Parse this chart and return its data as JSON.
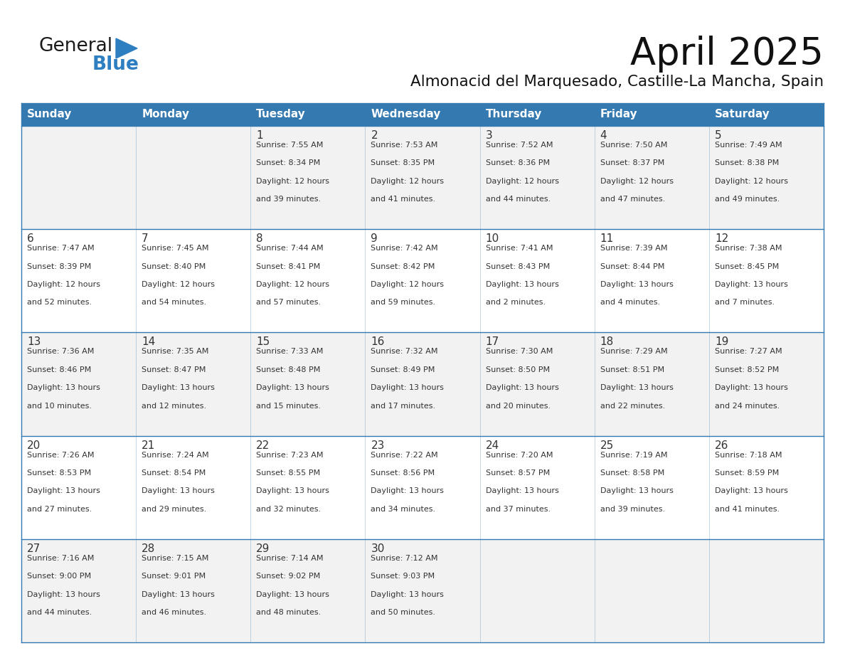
{
  "title": "April 2025",
  "subtitle": "Almonacid del Marquesado, Castille-La Mancha, Spain",
  "days_of_week": [
    "Sunday",
    "Monday",
    "Tuesday",
    "Wednesday",
    "Thursday",
    "Friday",
    "Saturday"
  ],
  "header_bg": "#3579b1",
  "header_text": "#ffffff",
  "row_bg_odd": "#f2f2f2",
  "row_bg_even": "#ffffff",
  "cell_text": "#333333",
  "grid_line": "#3579b1",
  "calendar": [
    [
      {
        "day": "",
        "sunrise": "",
        "sunset": "",
        "daylight": ""
      },
      {
        "day": "",
        "sunrise": "",
        "sunset": "",
        "daylight": ""
      },
      {
        "day": "1",
        "sunrise": "7:55 AM",
        "sunset": "8:34 PM",
        "daylight": "12 hours and 39 minutes."
      },
      {
        "day": "2",
        "sunrise": "7:53 AM",
        "sunset": "8:35 PM",
        "daylight": "12 hours and 41 minutes."
      },
      {
        "day": "3",
        "sunrise": "7:52 AM",
        "sunset": "8:36 PM",
        "daylight": "12 hours and 44 minutes."
      },
      {
        "day": "4",
        "sunrise": "7:50 AM",
        "sunset": "8:37 PM",
        "daylight": "12 hours and 47 minutes."
      },
      {
        "day": "5",
        "sunrise": "7:49 AM",
        "sunset": "8:38 PM",
        "daylight": "12 hours and 49 minutes."
      }
    ],
    [
      {
        "day": "6",
        "sunrise": "7:47 AM",
        "sunset": "8:39 PM",
        "daylight": "12 hours and 52 minutes."
      },
      {
        "day": "7",
        "sunrise": "7:45 AM",
        "sunset": "8:40 PM",
        "daylight": "12 hours and 54 minutes."
      },
      {
        "day": "8",
        "sunrise": "7:44 AM",
        "sunset": "8:41 PM",
        "daylight": "12 hours and 57 minutes."
      },
      {
        "day": "9",
        "sunrise": "7:42 AM",
        "sunset": "8:42 PM",
        "daylight": "12 hours and 59 minutes."
      },
      {
        "day": "10",
        "sunrise": "7:41 AM",
        "sunset": "8:43 PM",
        "daylight": "13 hours and 2 minutes."
      },
      {
        "day": "11",
        "sunrise": "7:39 AM",
        "sunset": "8:44 PM",
        "daylight": "13 hours and 4 minutes."
      },
      {
        "day": "12",
        "sunrise": "7:38 AM",
        "sunset": "8:45 PM",
        "daylight": "13 hours and 7 minutes."
      }
    ],
    [
      {
        "day": "13",
        "sunrise": "7:36 AM",
        "sunset": "8:46 PM",
        "daylight": "13 hours and 10 minutes."
      },
      {
        "day": "14",
        "sunrise": "7:35 AM",
        "sunset": "8:47 PM",
        "daylight": "13 hours and 12 minutes."
      },
      {
        "day": "15",
        "sunrise": "7:33 AM",
        "sunset": "8:48 PM",
        "daylight": "13 hours and 15 minutes."
      },
      {
        "day": "16",
        "sunrise": "7:32 AM",
        "sunset": "8:49 PM",
        "daylight": "13 hours and 17 minutes."
      },
      {
        "day": "17",
        "sunrise": "7:30 AM",
        "sunset": "8:50 PM",
        "daylight": "13 hours and 20 minutes."
      },
      {
        "day": "18",
        "sunrise": "7:29 AM",
        "sunset": "8:51 PM",
        "daylight": "13 hours and 22 minutes."
      },
      {
        "day": "19",
        "sunrise": "7:27 AM",
        "sunset": "8:52 PM",
        "daylight": "13 hours and 24 minutes."
      }
    ],
    [
      {
        "day": "20",
        "sunrise": "7:26 AM",
        "sunset": "8:53 PM",
        "daylight": "13 hours and 27 minutes."
      },
      {
        "day": "21",
        "sunrise": "7:24 AM",
        "sunset": "8:54 PM",
        "daylight": "13 hours and 29 minutes."
      },
      {
        "day": "22",
        "sunrise": "7:23 AM",
        "sunset": "8:55 PM",
        "daylight": "13 hours and 32 minutes."
      },
      {
        "day": "23",
        "sunrise": "7:22 AM",
        "sunset": "8:56 PM",
        "daylight": "13 hours and 34 minutes."
      },
      {
        "day": "24",
        "sunrise": "7:20 AM",
        "sunset": "8:57 PM",
        "daylight": "13 hours and 37 minutes."
      },
      {
        "day": "25",
        "sunrise": "7:19 AM",
        "sunset": "8:58 PM",
        "daylight": "13 hours and 39 minutes."
      },
      {
        "day": "26",
        "sunrise": "7:18 AM",
        "sunset": "8:59 PM",
        "daylight": "13 hours and 41 minutes."
      }
    ],
    [
      {
        "day": "27",
        "sunrise": "7:16 AM",
        "sunset": "9:00 PM",
        "daylight": "13 hours and 44 minutes."
      },
      {
        "day": "28",
        "sunrise": "7:15 AM",
        "sunset": "9:01 PM",
        "daylight": "13 hours and 46 minutes."
      },
      {
        "day": "29",
        "sunrise": "7:14 AM",
        "sunset": "9:02 PM",
        "daylight": "13 hours and 48 minutes."
      },
      {
        "day": "30",
        "sunrise": "7:12 AM",
        "sunset": "9:03 PM",
        "daylight": "13 hours and 50 minutes."
      },
      {
        "day": "",
        "sunrise": "",
        "sunset": "",
        "daylight": ""
      },
      {
        "day": "",
        "sunrise": "",
        "sunset": "",
        "daylight": ""
      },
      {
        "day": "",
        "sunrise": "",
        "sunset": "",
        "daylight": ""
      }
    ]
  ],
  "logo_general_color": "#1a1a1a",
  "logo_blue_color": "#2e7fc1",
  "logo_triangle_color": "#2e7fc1",
  "fig_width": 11.88,
  "fig_height": 9.18,
  "dpi": 100
}
